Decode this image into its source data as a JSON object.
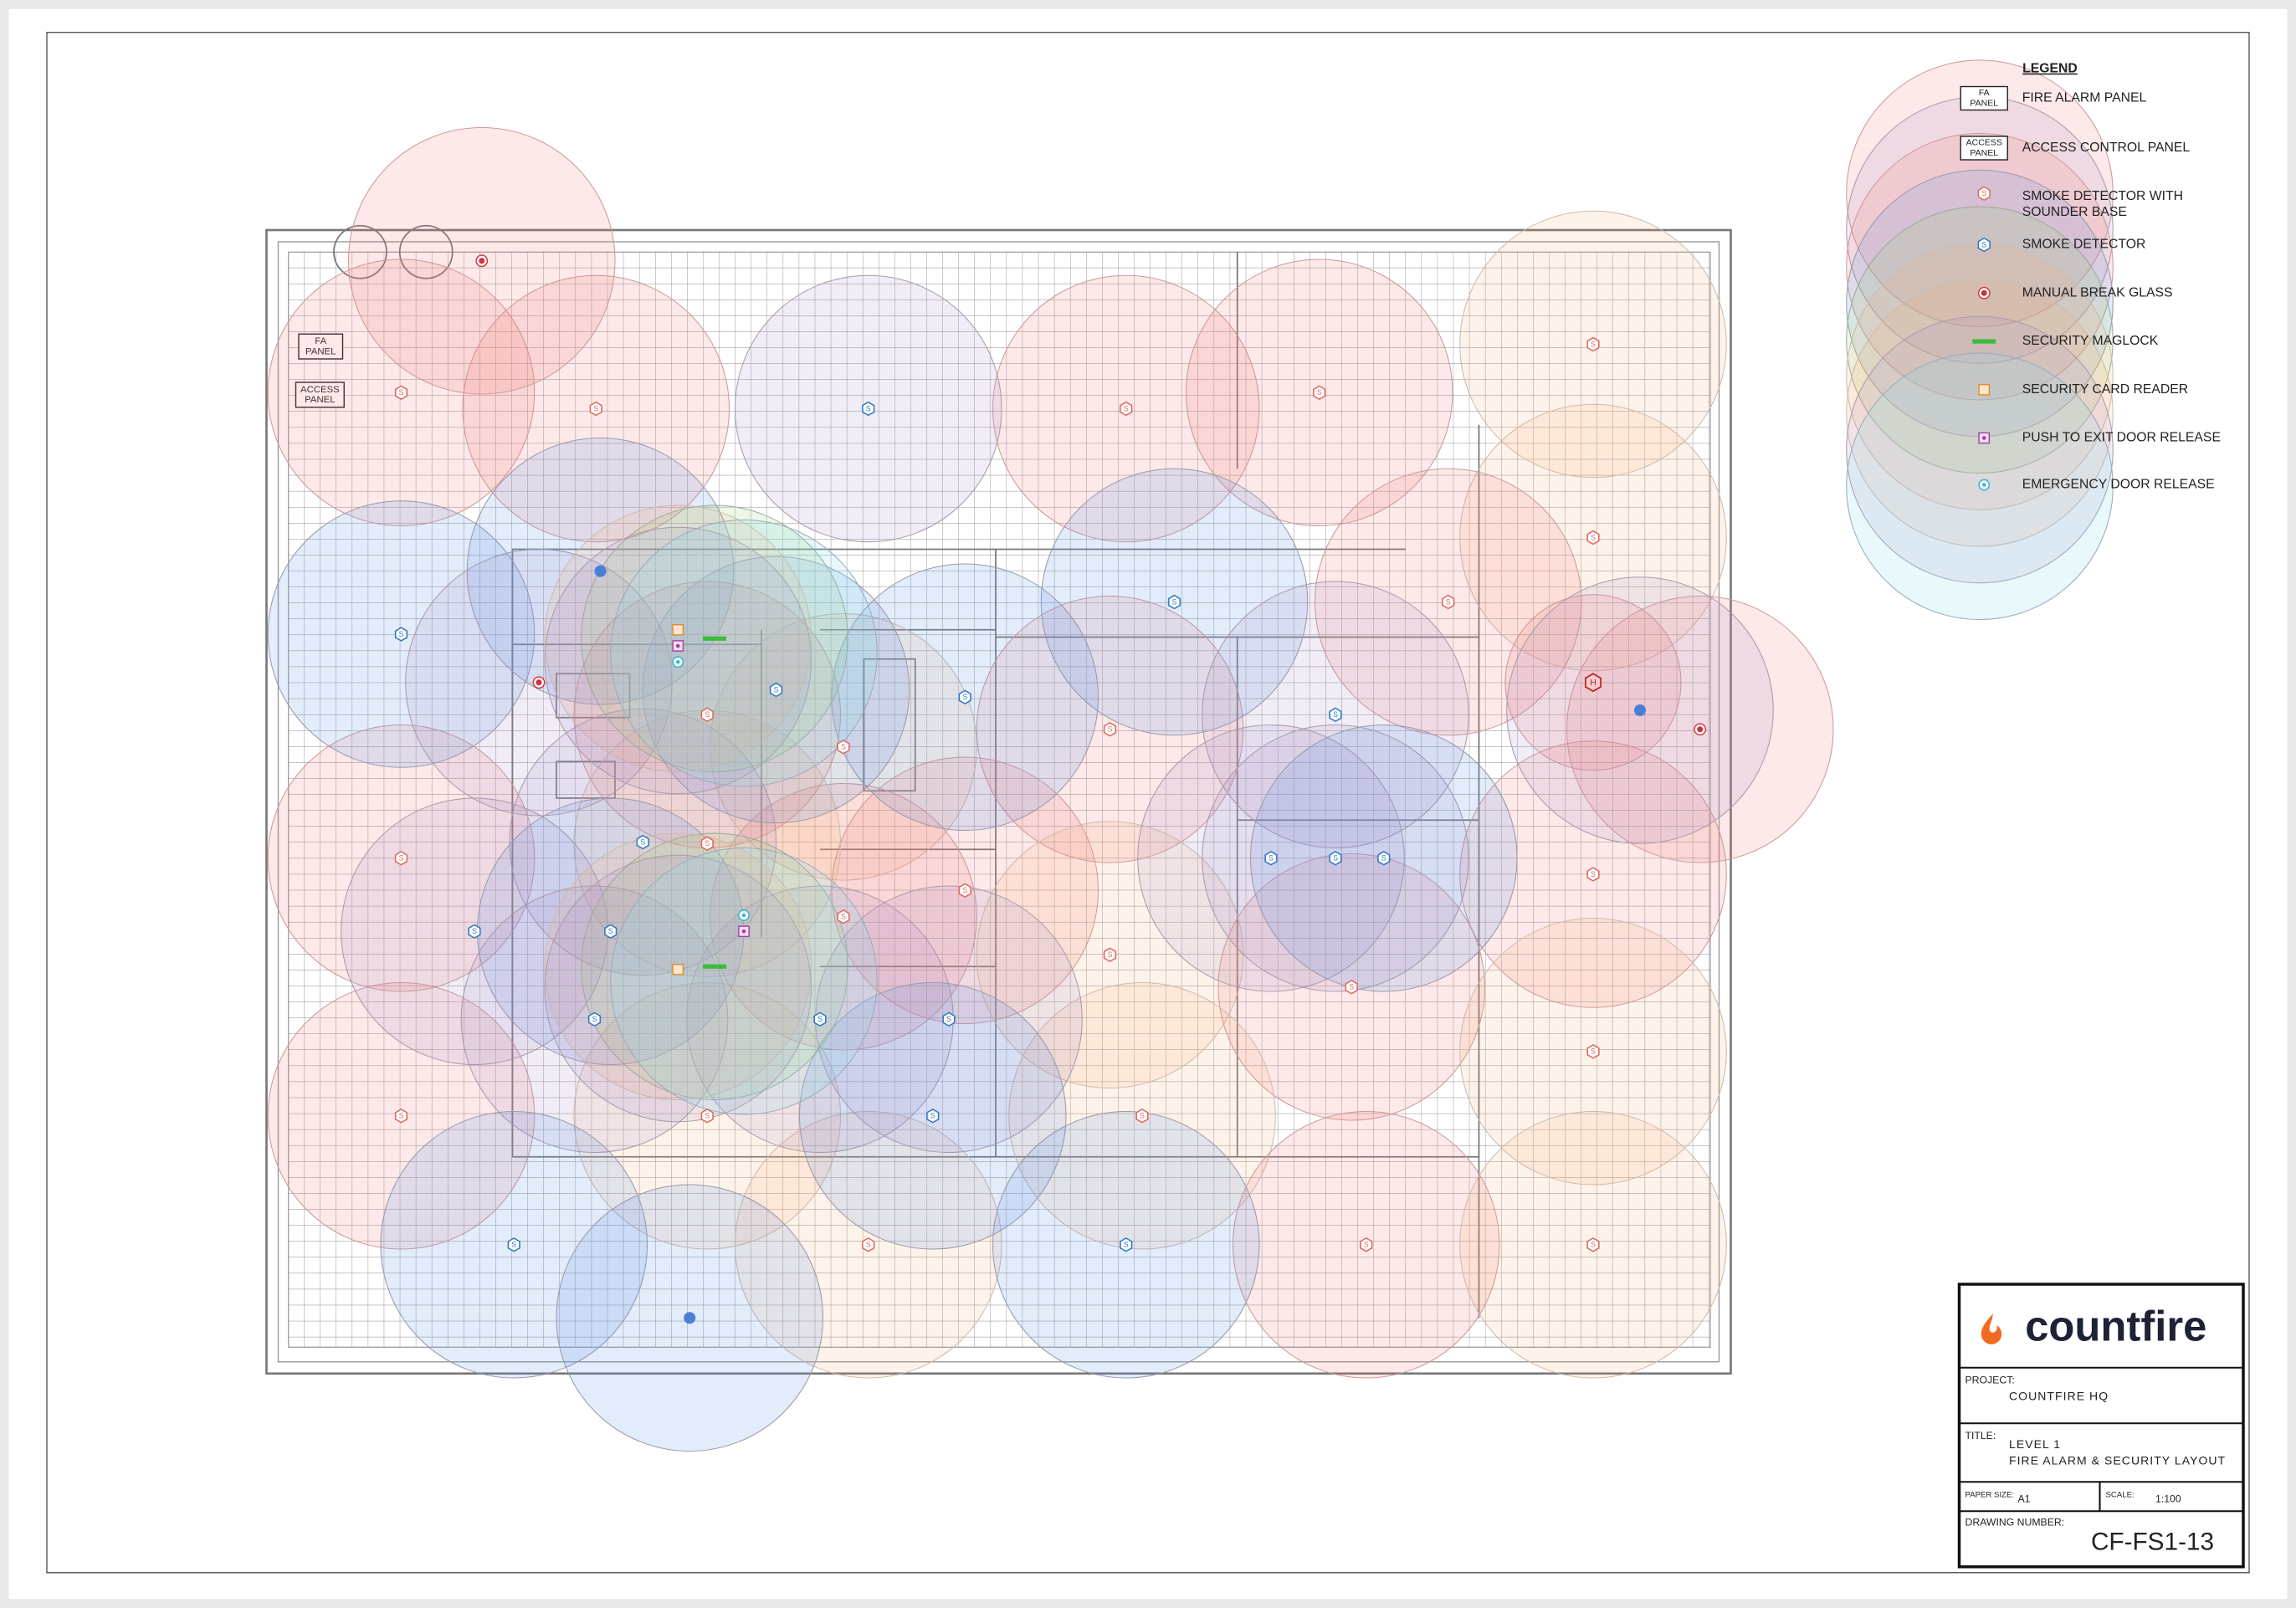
{
  "legend": {
    "title": "LEGEND",
    "items": [
      {
        "symbol": [
          "FA",
          "PANEL"
        ],
        "label": [
          "FIRE ALARM PANEL"
        ]
      },
      {
        "symbol": [
          "ACCESS",
          "PANEL"
        ],
        "label": [
          "ACCESS CONTROL PANEL"
        ]
      },
      {
        "label": [
          "SMOKE DETECTOR WITH",
          "SOUNDER BASE"
        ]
      },
      {
        "label": [
          "SMOKE DETECTOR"
        ]
      },
      {
        "label": [
          "MANUAL BREAK GLASS"
        ]
      },
      {
        "label": [
          "SECURITY MAGLOCK"
        ]
      },
      {
        "label": [
          "SECURITY CARD READER"
        ]
      },
      {
        "label": [
          "PUSH TO EXIT DOOR RELEASE"
        ]
      },
      {
        "label": [
          "EMERGENCY DOOR RELEASE"
        ]
      }
    ]
  },
  "symbols": {
    "smoke": "S",
    "heat": "H"
  },
  "floor_plan": {
    "fa_panel": [
      "FA",
      "PANEL"
    ],
    "access_panel": [
      "ACCESS",
      "PANEL"
    ]
  },
  "title_block": {
    "logo": "countfire",
    "project_label": "PROJECT:",
    "project": "COUNTFIRE HQ",
    "title_label": "TITLE:",
    "title": [
      "LEVEL 1",
      "FIRE ALARM & SECURITY LAYOUT"
    ],
    "paper_size_label": "PAPER SIZE:",
    "paper_size": "A1",
    "scale_label": "SCALE:",
    "scale": "1:100",
    "drawing_number_label": "DRAWING NUMBER:",
    "drawing_number": "CF-FS1-13"
  }
}
